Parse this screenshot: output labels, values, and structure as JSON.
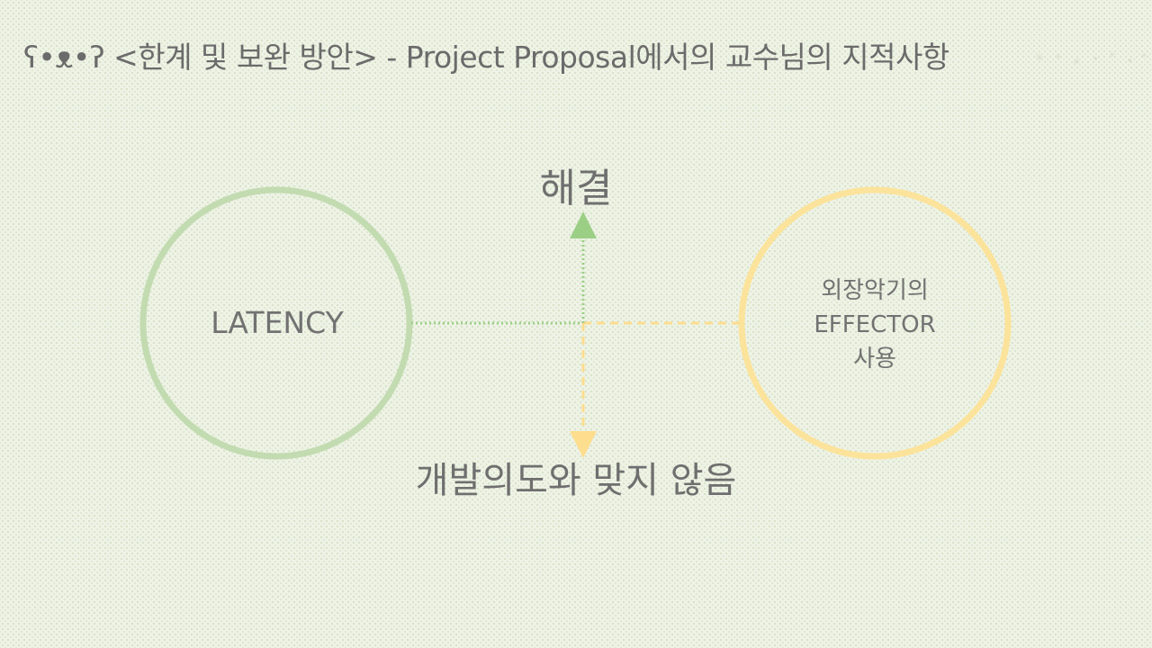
{
  "header": {
    "title": "ʕ•ᴥ•ʔ <한계 및 보완 방안> - Project Proposal에서의 교수님의 지적사항"
  },
  "diagram": {
    "top_label": "해결",
    "bottom_label": "개발의도와 맞지 않음",
    "left_circle": {
      "label": "LATENCY",
      "color": "#c2dbb0"
    },
    "right_circle": {
      "lines": [
        "외장악기의",
        "EFFECTOR",
        "사용"
      ],
      "color": "#fce39b"
    },
    "colors": {
      "green_line": "#9ccf86",
      "yellow_line": "#fddd8e",
      "background": "#eef3e6"
    }
  },
  "decor": {
    "icon": "sparkle-icon"
  }
}
